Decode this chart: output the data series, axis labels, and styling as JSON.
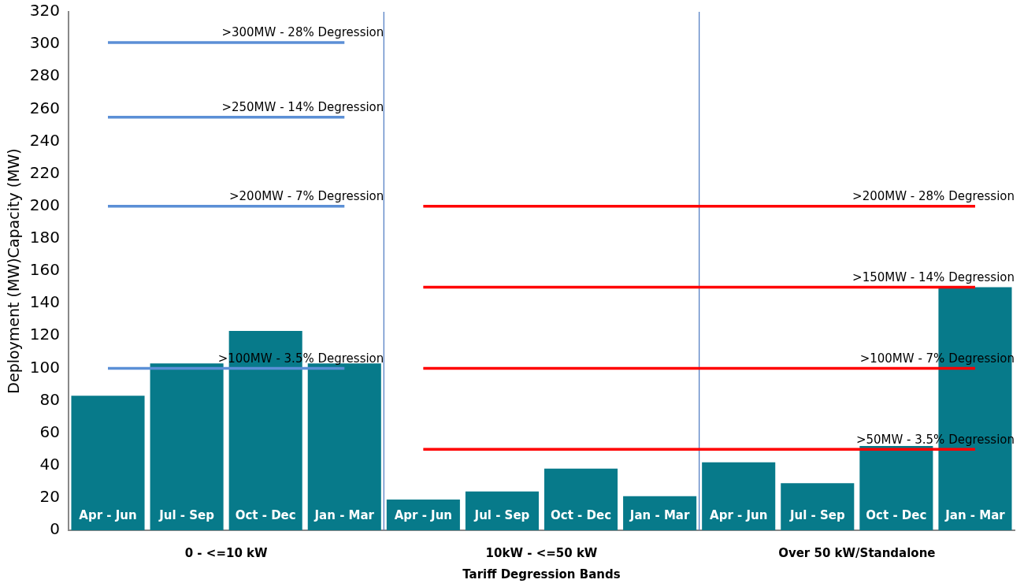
{
  "chart_data": {
    "type": "bar",
    "xlabel": "Tariff Degression Bands",
    "ylabel": "Deployment (MW)Capacity (MW)",
    "categories": [
      "Apr - Jun",
      "Jul - Sep",
      "Oct - Dec",
      "Jan - Mar",
      "Apr - Jun",
      "Jul - Sep",
      "Oct - Dec",
      "Jan - Mar",
      "Apr - Jun",
      "Jul - Sep",
      "Oct - Dec",
      "Jan - Mar"
    ],
    "series": [
      {
        "color": "#077a8a",
        "values": [
          83,
          103,
          123,
          103,
          19,
          24,
          38,
          21,
          42,
          29,
          52,
          150
        ]
      },
      {
        "type": "line",
        "name": ">300MW - 28% Degression",
        "color": "#5b8fd6",
        "values": [
          301,
          301,
          301,
          301,
          null,
          null,
          null,
          null,
          null,
          null,
          null,
          null
        ]
      },
      {
        "type": "line",
        "name": ">250MW - 14% Degression",
        "color": "#5b8fd6",
        "values": [
          255,
          255,
          255,
          255,
          null,
          null,
          null,
          null,
          null,
          null,
          null,
          null
        ]
      },
      {
        "type": "line",
        "name": ">200MW - 7% Degression",
        "color": "#5b8fd6",
        "values": [
          200,
          200,
          200,
          200,
          null,
          null,
          null,
          null,
          null,
          null,
          null,
          null
        ]
      },
      {
        "type": "line",
        "name": ">100MW - 3.5% Degression",
        "color": "#5b8fd6",
        "values": [
          100,
          100,
          100,
          100,
          null,
          null,
          null,
          null,
          null,
          null,
          null,
          null
        ]
      },
      {
        "type": "line",
        "name": ">200MW - 28% Degression",
        "color": "#ff0000",
        "values": [
          null,
          null,
          null,
          null,
          200,
          200,
          200,
          200,
          200,
          200,
          200,
          200
        ]
      },
      {
        "type": "line",
        "name": ">150MW - 14% Degression",
        "color": "#ff0000",
        "values": [
          null,
          null,
          null,
          null,
          150,
          150,
          150,
          150,
          150,
          150,
          150,
          150
        ]
      },
      {
        "type": "line",
        "name": ">100MW - 7% Degression",
        "color": "#ff0000",
        "values": [
          null,
          null,
          null,
          null,
          100,
          100,
          100,
          100,
          100,
          100,
          100,
          100
        ]
      },
      {
        "type": "line",
        "name": ">50MW - 3.5% Degression",
        "color": "#ff0000",
        "values": [
          null,
          null,
          null,
          null,
          50,
          50,
          50,
          50,
          50,
          50,
          50,
          50
        ]
      }
    ],
    "annotations": [
      "0 - <=10 kW",
      "10kW - <=50 kW",
      "Over 50 kW/Standalone"
    ],
    "ylim": [
      0,
      320
    ],
    "yticks": [
      0,
      20,
      40,
      60,
      80,
      100,
      120,
      140,
      160,
      180,
      200,
      220,
      240,
      260,
      280,
      300,
      320
    ],
    "grid": false,
    "legend": false,
    "marker": "none",
    "line_style": "solid"
  }
}
